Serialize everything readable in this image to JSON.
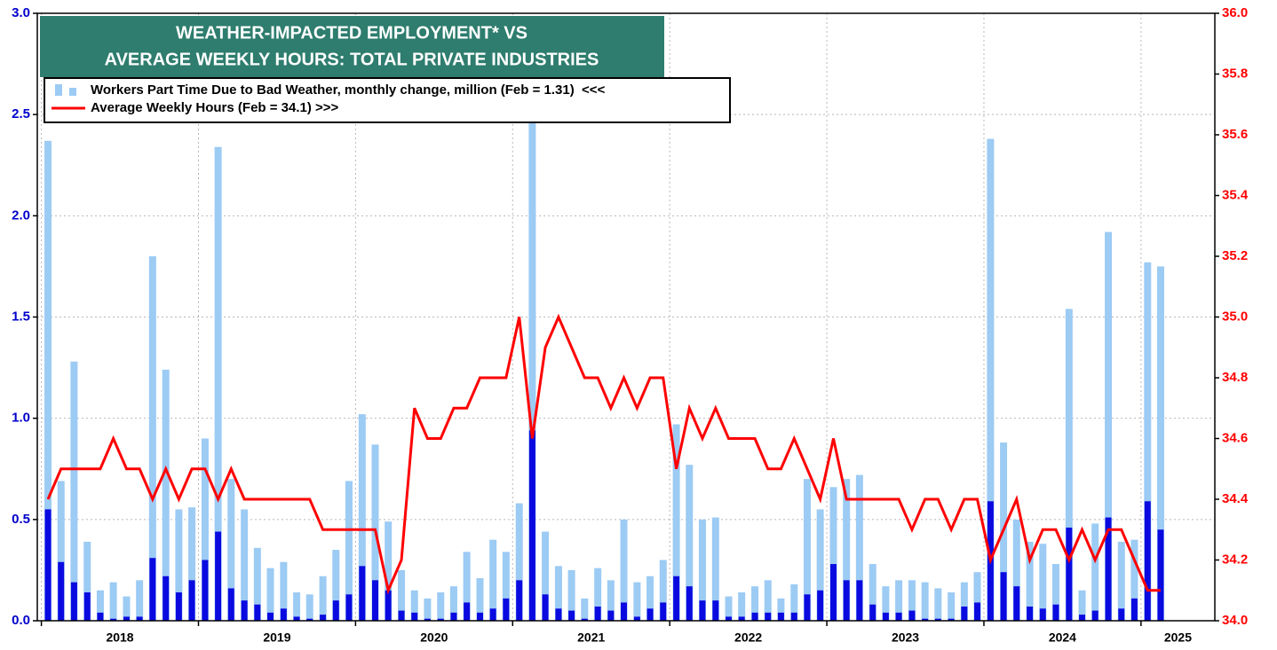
{
  "chart_data": {
    "type": "bar",
    "title": [
      "WEATHER-IMPACTED EMPLOYMENT* VS",
      "AVERAGE WEEKLY HOURS: TOTAL PRIVATE INDUSTRIES"
    ],
    "legend": "upper left",
    "grid": true,
    "x": [
      2018.042,
      2018.125,
      2018.208,
      2018.292,
      2018.375,
      2018.458,
      2018.542,
      2018.625,
      2018.708,
      2018.792,
      2018.875,
      2018.958,
      2019.042,
      2019.125,
      2019.208,
      2019.292,
      2019.375,
      2019.458,
      2019.542,
      2019.625,
      2019.708,
      2019.792,
      2019.875,
      2019.958,
      2020.042,
      2020.125,
      2020.208,
      2020.292,
      2020.375,
      2020.458,
      2020.542,
      2020.625,
      2020.708,
      2020.792,
      2020.875,
      2020.958,
      2021.042,
      2021.125,
      2021.208,
      2021.292,
      2021.375,
      2021.458,
      2021.542,
      2021.625,
      2021.708,
      2021.792,
      2021.875,
      2021.958,
      2022.042,
      2022.125,
      2022.208,
      2022.292,
      2022.375,
      2022.458,
      2022.542,
      2022.625,
      2022.708,
      2022.792,
      2022.875,
      2022.958,
      2023.042,
      2023.125,
      2023.208,
      2023.292,
      2023.375,
      2023.458,
      2023.542,
      2023.625,
      2023.708,
      2023.792,
      2023.875,
      2023.958,
      2024.042,
      2024.125,
      2024.208,
      2024.292,
      2024.375,
      2024.458,
      2024.542,
      2024.625,
      2024.708,
      2024.792,
      2024.875,
      2024.958,
      2025.042,
      2025.125
    ],
    "xlim": [
      2017.974,
      2025.47
    ],
    "xticks": [
      2018,
      2019,
      2020,
      2021,
      2022,
      2023,
      2024,
      2025
    ],
    "ylim": [
      0,
      3
    ],
    "yticks": [
      {
        "value": 0,
        "label": "0.0"
      },
      0.5,
      {
        "value": 1,
        "label": "1.0"
      },
      1.5,
      {
        "value": 2,
        "label": "2.0"
      },
      2.5,
      {
        "value": 3,
        "label": "3.0"
      }
    ],
    "y2lim": [
      34,
      36
    ],
    "y2ticks": [
      {
        "value": 34,
        "label": "34.0"
      },
      34.2,
      34.4,
      34.6,
      34.8,
      {
        "value": 35,
        "label": "35.0"
      },
      35.2,
      35.4,
      35.6,
      35.8,
      {
        "value": 36,
        "label": "36.0"
      }
    ],
    "series": [
      {
        "name": "Workers Part Time Due to Bad Weather, monthly change, million (Feb = 1.31)  <<<",
        "type": "bar",
        "color": "#9ccbf4",
        "values": [
          2.37,
          0.69,
          1.28,
          0.39,
          0.15,
          0.19,
          0.12,
          0.2,
          1.8,
          1.24,
          0.55,
          0.56,
          0.9,
          2.34,
          0.7,
          0.55,
          0.36,
          0.26,
          0.29,
          0.14,
          0.13,
          0.22,
          0.35,
          0.69,
          1.02,
          0.87,
          0.49,
          0.25,
          0.15,
          0.11,
          0.14,
          0.17,
          0.34,
          0.21,
          0.4,
          0.34,
          0.58,
          2.75,
          0.44,
          0.27,
          0.25,
          0.11,
          0.26,
          0.2,
          0.5,
          0.19,
          0.22,
          0.3,
          0.97,
          0.77,
          0.5,
          0.51,
          0.12,
          0.14,
          0.17,
          0.2,
          0.11,
          0.18,
          0.7,
          0.55,
          0.66,
          0.7,
          0.72,
          0.28,
          0.17,
          0.2,
          0.2,
          0.19,
          0.16,
          0.14,
          0.19,
          0.24,
          2.38,
          0.88,
          0.5,
          0.39,
          0.38,
          0.28,
          1.54,
          0.15,
          0.48,
          1.92,
          0.39,
          0.4,
          1.77,
          1.75
        ]
      },
      {
        "type": "bar",
        "color": "#0a0ae0",
        "values": [
          0.55,
          0.29,
          0.19,
          0.14,
          0.04,
          0.01,
          0.02,
          0.02,
          0.31,
          0.22,
          0.14,
          0.2,
          0.3,
          0.44,
          0.16,
          0.1,
          0.08,
          0.04,
          0.06,
          0.02,
          0.01,
          0.03,
          0.1,
          0.13,
          0.27,
          0.2,
          0.15,
          0.05,
          0.04,
          0.01,
          0.01,
          0.04,
          0.09,
          0.04,
          0.06,
          0.11,
          0.2,
          0.94,
          0.13,
          0.06,
          0.05,
          0.01,
          0.07,
          0.05,
          0.09,
          0.02,
          0.06,
          0.09,
          0.22,
          0.17,
          0.1,
          0.1,
          0.02,
          0.02,
          0.04,
          0.04,
          0.04,
          0.04,
          0.13,
          0.15,
          0.28,
          0.2,
          0.2,
          0.08,
          0.04,
          0.04,
          0.05,
          0.01,
          0.01,
          0.01,
          0.07,
          0.09,
          0.59,
          0.24,
          0.17,
          0.07,
          0.06,
          0.08,
          0.46,
          0.03,
          0.05,
          0.51,
          0.06,
          0.11,
          0.59,
          0.45
        ]
      },
      {
        "name": "Average Weekly Hours (Feb = 34.1) >>>",
        "type": "line",
        "axis": "y2",
        "color": "#ff0000",
        "values": [
          34.4,
          34.5,
          34.5,
          34.5,
          34.5,
          34.6,
          34.5,
          34.5,
          34.4,
          34.5,
          34.4,
          34.5,
          34.5,
          34.4,
          34.5,
          34.4,
          34.4,
          34.4,
          34.4,
          34.4,
          34.4,
          34.3,
          34.3,
          34.3,
          34.3,
          34.3,
          34.1,
          34.2,
          34.7,
          34.6,
          34.6,
          34.7,
          34.7,
          34.8,
          34.8,
          34.8,
          35.0,
          34.6,
          34.9,
          35.0,
          34.9,
          34.8,
          34.8,
          34.7,
          34.8,
          34.7,
          34.8,
          34.8,
          34.5,
          34.7,
          34.6,
          34.7,
          34.6,
          34.6,
          34.6,
          34.5,
          34.5,
          34.6,
          34.5,
          34.4,
          34.6,
          34.4,
          34.4,
          34.4,
          34.4,
          34.4,
          34.3,
          34.4,
          34.4,
          34.3,
          34.4,
          34.4,
          34.2,
          34.3,
          34.4,
          34.2,
          34.3,
          34.3,
          34.2,
          34.3,
          34.2,
          34.3,
          34.3,
          34.2,
          34.1,
          34.1
        ]
      }
    ]
  }
}
